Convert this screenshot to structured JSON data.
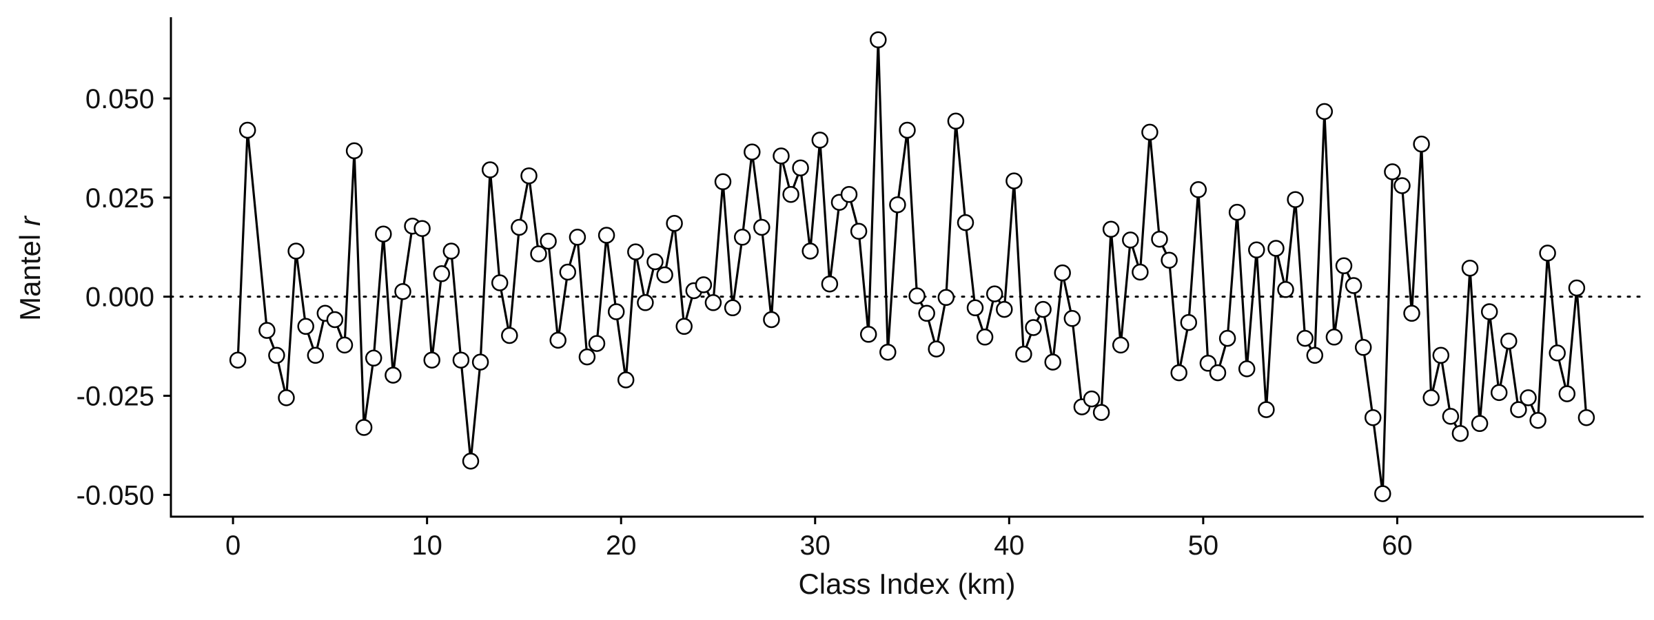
{
  "chart_data": {
    "type": "line",
    "xlabel": "Class Index (km)",
    "ylabel": {
      "main": "Mantel",
      "italic": "r"
    },
    "xlim": [
      -3.2,
      72.7
    ],
    "ylim": [
      -0.0555,
      0.0705
    ],
    "x_ticks": [
      0,
      10,
      20,
      30,
      40,
      50,
      60
    ],
    "x_tick_labels": [
      "0",
      "10",
      "20",
      "30",
      "40",
      "50",
      "60"
    ],
    "y_ticks": [
      0.05,
      0.025,
      0,
      -0.025,
      -0.05
    ],
    "y_tick_labels": [
      "0.050",
      "0.025",
      "0.000",
      "-0.025",
      "-0.050"
    ],
    "reference_line": {
      "y": 0,
      "style": "dotted"
    },
    "marker": "open-circle",
    "grid": false,
    "legend": "none",
    "colors": {
      "line": "#000000",
      "marker_fill": "#ffffff",
      "axis": "#000000"
    },
    "series": [
      {
        "points": [
          [
            0.25,
            -0.016
          ],
          [
            0.75,
            0.042
          ],
          [
            1.75,
            -0.0085
          ],
          [
            2.25,
            -0.0148
          ],
          [
            2.75,
            -0.0255
          ],
          [
            3.25,
            0.0115
          ],
          [
            3.75,
            -0.0075
          ],
          [
            4.25,
            -0.0148
          ],
          [
            4.75,
            -0.0042
          ],
          [
            5.25,
            -0.0058
          ],
          [
            5.75,
            -0.0122
          ],
          [
            6.25,
            0.0368
          ],
          [
            6.75,
            -0.033
          ],
          [
            7.25,
            -0.0155
          ],
          [
            7.75,
            0.0158
          ],
          [
            8.25,
            -0.0198
          ],
          [
            8.75,
            0.0013
          ],
          [
            9.25,
            0.0178
          ],
          [
            9.75,
            0.0172
          ],
          [
            10.25,
            -0.016
          ],
          [
            10.75,
            0.0058
          ],
          [
            11.25,
            0.0115
          ],
          [
            11.75,
            -0.016
          ],
          [
            12.25,
            -0.0415
          ],
          [
            12.75,
            -0.0165
          ],
          [
            13.25,
            0.032
          ],
          [
            13.75,
            0.0035
          ],
          [
            14.25,
            -0.0098
          ],
          [
            14.75,
            0.0175
          ],
          [
            15.25,
            0.0305
          ],
          [
            15.75,
            0.0108
          ],
          [
            16.25,
            0.014
          ],
          [
            16.75,
            -0.011
          ],
          [
            17.25,
            0.0062
          ],
          [
            17.75,
            0.015
          ],
          [
            18.25,
            -0.0152
          ],
          [
            18.75,
            -0.0118
          ],
          [
            19.25,
            0.0155
          ],
          [
            19.75,
            -0.0038
          ],
          [
            20.25,
            -0.021
          ],
          [
            20.75,
            0.0113
          ],
          [
            21.25,
            -0.0015
          ],
          [
            21.75,
            0.0088
          ],
          [
            22.25,
            0.0055
          ],
          [
            22.75,
            0.0185
          ],
          [
            23.25,
            -0.0075
          ],
          [
            23.75,
            0.0015
          ],
          [
            24.25,
            0.003
          ],
          [
            24.75,
            -0.0015
          ],
          [
            25.25,
            0.029
          ],
          [
            25.75,
            -0.0028
          ],
          [
            26.25,
            0.015
          ],
          [
            26.75,
            0.0365
          ],
          [
            27.25,
            0.0175
          ],
          [
            27.75,
            -0.0058
          ],
          [
            28.25,
            0.0355
          ],
          [
            28.75,
            0.0258
          ],
          [
            29.25,
            0.0325
          ],
          [
            29.75,
            0.0115
          ],
          [
            30.25,
            0.0395
          ],
          [
            30.75,
            0.0032
          ],
          [
            31.25,
            0.0238
          ],
          [
            31.75,
            0.0258
          ],
          [
            32.25,
            0.0165
          ],
          [
            32.75,
            -0.0095
          ],
          [
            33.25,
            0.0648
          ],
          [
            33.75,
            -0.014
          ],
          [
            34.25,
            0.0232
          ],
          [
            34.75,
            0.042
          ],
          [
            35.25,
            0.0002
          ],
          [
            35.75,
            -0.0042
          ],
          [
            36.25,
            -0.0132
          ],
          [
            36.75,
            -0.0002
          ],
          [
            37.25,
            0.0443
          ],
          [
            37.75,
            0.0187
          ],
          [
            38.25,
            -0.0028
          ],
          [
            38.75,
            -0.0102
          ],
          [
            39.25,
            0.0007
          ],
          [
            39.75,
            -0.0032
          ],
          [
            40.25,
            0.0292
          ],
          [
            40.75,
            -0.0145
          ],
          [
            41.25,
            -0.0078
          ],
          [
            41.75,
            -0.0032
          ],
          [
            42.25,
            -0.0165
          ],
          [
            42.75,
            0.006
          ],
          [
            43.25,
            -0.0055
          ],
          [
            43.75,
            -0.0278
          ],
          [
            44.25,
            -0.0258
          ],
          [
            44.75,
            -0.0292
          ],
          [
            45.25,
            0.017
          ],
          [
            45.75,
            -0.0122
          ],
          [
            46.25,
            0.0143
          ],
          [
            46.75,
            0.0062
          ],
          [
            47.25,
            0.0415
          ],
          [
            47.75,
            0.0145
          ],
          [
            48.25,
            0.0092
          ],
          [
            48.75,
            -0.0192
          ],
          [
            49.25,
            -0.0065
          ],
          [
            49.75,
            0.027
          ],
          [
            50.25,
            -0.0168
          ],
          [
            50.75,
            -0.0192
          ],
          [
            51.25,
            -0.0105
          ],
          [
            51.75,
            0.0213
          ],
          [
            52.25,
            -0.0182
          ],
          [
            52.75,
            0.0118
          ],
          [
            53.25,
            -0.0285
          ],
          [
            53.75,
            0.0122
          ],
          [
            54.25,
            0.0018
          ],
          [
            54.75,
            0.0245
          ],
          [
            55.25,
            -0.0105
          ],
          [
            55.75,
            -0.0148
          ],
          [
            56.25,
            0.0467
          ],
          [
            56.75,
            -0.0102
          ],
          [
            57.25,
            0.0078
          ],
          [
            57.75,
            0.0028
          ],
          [
            58.25,
            -0.0128
          ],
          [
            58.75,
            -0.0305
          ],
          [
            59.25,
            -0.0497
          ],
          [
            59.75,
            0.0315
          ],
          [
            60.25,
            0.028
          ],
          [
            60.75,
            -0.0042
          ],
          [
            61.25,
            0.0385
          ],
          [
            61.75,
            -0.0255
          ],
          [
            62.25,
            -0.0148
          ],
          [
            62.75,
            -0.0302
          ],
          [
            63.25,
            -0.0345
          ],
          [
            63.75,
            0.0072
          ],
          [
            64.25,
            -0.032
          ],
          [
            64.75,
            -0.0038
          ],
          [
            65.25,
            -0.0242
          ],
          [
            65.75,
            -0.0112
          ],
          [
            66.25,
            -0.0285
          ],
          [
            66.75,
            -0.0255
          ],
          [
            67.25,
            -0.0312
          ],
          [
            67.75,
            0.011
          ],
          [
            68.25,
            -0.0142
          ],
          [
            68.75,
            -0.0245
          ],
          [
            69.25,
            0.0022
          ],
          [
            69.75,
            -0.0305
          ]
        ],
        "no_marker_indices": [
          139
        ]
      }
    ]
  }
}
